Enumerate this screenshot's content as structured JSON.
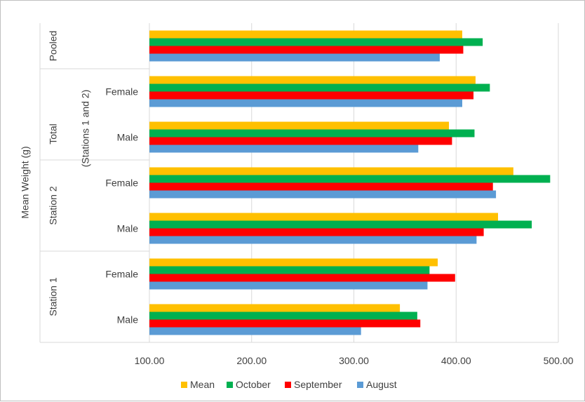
{
  "chart_data": {
    "type": "bar",
    "orientation": "horizontal",
    "title": "",
    "xlabel": "",
    "ylabel": "Mean Weight (g)",
    "xlim": [
      100,
      500
    ],
    "x_ticks": [
      "100.00",
      "200.00",
      "300.00",
      "400.00",
      "500.00"
    ],
    "grid": true,
    "legend_position": "bottom",
    "rows": [
      {
        "outer": "Pooled",
        "inner": ""
      },
      {
        "outer": "Total (Stations 1 and 2)",
        "inner": "Female"
      },
      {
        "outer": "Total (Stations 1 and 2)",
        "inner": "Male"
      },
      {
        "outer": "Station 2",
        "inner": "Female"
      },
      {
        "outer": "Station 2",
        "inner": "Male"
      },
      {
        "outer": "Station 1",
        "inner": "Female"
      },
      {
        "outer": "Station 1",
        "inner": "Male"
      }
    ],
    "group_labels": [
      {
        "lines": [
          "Pooled"
        ]
      },
      {
        "lines": [
          "Total",
          "(Stations 1 and 2)"
        ]
      },
      {
        "lines": [
          "Station 2"
        ]
      },
      {
        "lines": [
          "Station 1"
        ]
      }
    ],
    "series": [
      {
        "name": "Mean",
        "color": "#FFC000",
        "values": [
          406,
          419,
          393,
          456,
          441,
          382,
          345
        ]
      },
      {
        "name": "October",
        "color": "#00B050",
        "values": [
          426,
          433,
          418,
          492,
          474,
          374,
          362
        ]
      },
      {
        "name": "September",
        "color": "#FF0000",
        "values": [
          407,
          417,
          396,
          436,
          427,
          399,
          365
        ]
      },
      {
        "name": "August",
        "color": "#5B9BD5",
        "values": [
          384,
          406,
          363,
          439,
          420,
          372,
          307
        ]
      }
    ]
  }
}
